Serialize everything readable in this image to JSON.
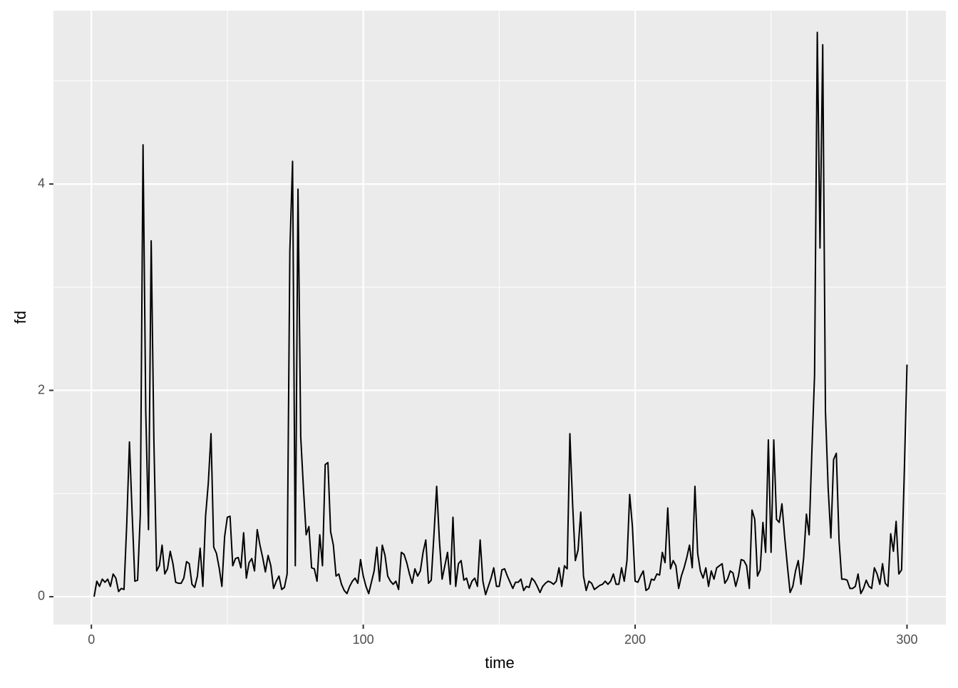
{
  "chart_data": {
    "type": "line",
    "x_label": "time",
    "y_label": "fd",
    "x": [
      1,
      2,
      3,
      4,
      5,
      6,
      7,
      8,
      9,
      10,
      11,
      12,
      13,
      14,
      15,
      16,
      17,
      18,
      19,
      20,
      21,
      22,
      23,
      24,
      25,
      26,
      27,
      28,
      29,
      30,
      31,
      32,
      33,
      34,
      35,
      36,
      37,
      38,
      39,
      40,
      41,
      42,
      43,
      44,
      45,
      46,
      47,
      48,
      49,
      50,
      51,
      52,
      53,
      54,
      55,
      56,
      57,
      58,
      59,
      60,
      61,
      62,
      63,
      64,
      65,
      66,
      67,
      68,
      69,
      70,
      71,
      72,
      73,
      74,
      75,
      76,
      77,
      78,
      79,
      80,
      81,
      82,
      83,
      84,
      85,
      86,
      87,
      88,
      89,
      90,
      91,
      92,
      93,
      94,
      95,
      96,
      97,
      98,
      99,
      100,
      101,
      102,
      103,
      104,
      105,
      106,
      107,
      108,
      109,
      110,
      111,
      112,
      113,
      114,
      115,
      116,
      117,
      118,
      119,
      120,
      121,
      122,
      123,
      124,
      125,
      126,
      127,
      128,
      129,
      130,
      131,
      132,
      133,
      134,
      135,
      136,
      137,
      138,
      139,
      140,
      141,
      142,
      143,
      144,
      145,
      146,
      147,
      148,
      149,
      150,
      151,
      152,
      153,
      154,
      155,
      156,
      157,
      158,
      159,
      160,
      161,
      162,
      163,
      164,
      165,
      166,
      167,
      168,
      169,
      170,
      171,
      172,
      173,
      174,
      175,
      176,
      177,
      178,
      179,
      180,
      181,
      182,
      183,
      184,
      185,
      186,
      187,
      188,
      189,
      190,
      191,
      192,
      193,
      194,
      195,
      196,
      197,
      198,
      199,
      200,
      201,
      202,
      203,
      204,
      205,
      206,
      207,
      208,
      209,
      210,
      211,
      212,
      213,
      214,
      215,
      216,
      217,
      218,
      219,
      220,
      221,
      222,
      223,
      224,
      225,
      226,
      227,
      228,
      229,
      230,
      231,
      232,
      233,
      234,
      235,
      236,
      237,
      238,
      239,
      240,
      241,
      242,
      243,
      244,
      245,
      246,
      247,
      248,
      249,
      250,
      251,
      252,
      253,
      254,
      255,
      256,
      257,
      258,
      259,
      260,
      261,
      262,
      263,
      264,
      265,
      266,
      267,
      268,
      269,
      270,
      271,
      272,
      273,
      274,
      275,
      276,
      277,
      278,
      279,
      280,
      281,
      282,
      283,
      284,
      285,
      286,
      287,
      288,
      289,
      290,
      291,
      292,
      293,
      294,
      295,
      296,
      297,
      298,
      299,
      300
    ],
    "values": [
      0,
      0.15,
      0.1,
      0.17,
      0.14,
      0.17,
      0.1,
      0.22,
      0.18,
      0.05,
      0.08,
      0.07,
      0.7,
      1.5,
      0.8,
      0.15,
      0.16,
      0.8,
      4.38,
      1.8,
      0.65,
      3.45,
      1.5,
      0.25,
      0.3,
      0.5,
      0.22,
      0.27,
      0.44,
      0.32,
      0.14,
      0.13,
      0.13,
      0.18,
      0.34,
      0.32,
      0.12,
      0.09,
      0.2,
      0.47,
      0.1,
      0.78,
      1.1,
      1.58,
      0.48,
      0.42,
      0.28,
      0.1,
      0.58,
      0.77,
      0.78,
      0.3,
      0.37,
      0.38,
      0.28,
      0.62,
      0.18,
      0.33,
      0.37,
      0.25,
      0.65,
      0.5,
      0.38,
      0.24,
      0.4,
      0.3,
      0.08,
      0.15,
      0.2,
      0.07,
      0.09,
      0.22,
      3.35,
      4.22,
      0.3,
      3.95,
      1.55,
      1.05,
      0.6,
      0.68,
      0.28,
      0.27,
      0.15,
      0.6,
      0.3,
      1.28,
      1.3,
      0.63,
      0.5,
      0.2,
      0.22,
      0.12,
      0.06,
      0.03,
      0.1,
      0.15,
      0.18,
      0.13,
      0.36,
      0.2,
      0.1,
      0.03,
      0.14,
      0.25,
      0.48,
      0.15,
      0.5,
      0.4,
      0.2,
      0.15,
      0.12,
      0.15,
      0.07,
      0.43,
      0.41,
      0.33,
      0.22,
      0.13,
      0.27,
      0.2,
      0.25,
      0.43,
      0.55,
      0.13,
      0.16,
      0.6,
      1.07,
      0.55,
      0.17,
      0.3,
      0.43,
      0.12,
      0.77,
      0.1,
      0.32,
      0.35,
      0.16,
      0.18,
      0.08,
      0.15,
      0.18,
      0.1,
      0.55,
      0.15,
      0.02,
      0.1,
      0.18,
      0.28,
      0.1,
      0.1,
      0.26,
      0.27,
      0.2,
      0.14,
      0.08,
      0.14,
      0.14,
      0.17,
      0.06,
      0.1,
      0.09,
      0.18,
      0.15,
      0.1,
      0.04,
      0.1,
      0.13,
      0.15,
      0.14,
      0.12,
      0.15,
      0.28,
      0.1,
      0.3,
      0.27,
      1.58,
      0.9,
      0.35,
      0.45,
      0.82,
      0.2,
      0.06,
      0.15,
      0.13,
      0.07,
      0.09,
      0.11,
      0.12,
      0.15,
      0.12,
      0.15,
      0.22,
      0.12,
      0.12,
      0.28,
      0.15,
      0.35,
      0.99,
      0.68,
      0.15,
      0.14,
      0.2,
      0.25,
      0.06,
      0.08,
      0.17,
      0.16,
      0.22,
      0.21,
      0.43,
      0.33,
      0.86,
      0.27,
      0.35,
      0.3,
      0.08,
      0.2,
      0.28,
      0.38,
      0.5,
      0.28,
      1.07,
      0.42,
      0.25,
      0.18,
      0.28,
      0.1,
      0.25,
      0.17,
      0.28,
      0.3,
      0.32,
      0.13,
      0.17,
      0.25,
      0.23,
      0.1,
      0.2,
      0.36,
      0.35,
      0.3,
      0.08,
      0.84,
      0.75,
      0.2,
      0.26,
      0.72,
      0.43,
      1.52,
      0.43,
      1.52,
      0.75,
      0.72,
      0.9,
      0.58,
      0.3,
      0.04,
      0.1,
      0.25,
      0.35,
      0.12,
      0.38,
      0.8,
      0.6,
      1.4,
      2.15,
      5.47,
      3.38,
      5.35,
      1.8,
      1.05,
      0.57,
      1.33,
      1.39,
      0.55,
      0.17,
      0.17,
      0.16,
      0.08,
      0.08,
      0.1,
      0.22,
      0.03,
      0.08,
      0.16,
      0.1,
      0.08,
      0.28,
      0.22,
      0.12,
      0.32,
      0.13,
      0.1,
      0.61,
      0.44,
      0.73,
      0.22,
      0.26,
      1.2,
      2.25
    ],
    "color": "#000000",
    "xlim": [
      -13.95,
      314.3
    ],
    "ylim": [
      -0.27,
      5.68
    ],
    "xticks": [
      0,
      100,
      200,
      300
    ],
    "yticks": [
      0,
      2,
      4
    ],
    "x_minor_grid": [
      50,
      150,
      250
    ],
    "y_minor_grid": [
      1,
      3,
      5
    ],
    "grid": true
  }
}
